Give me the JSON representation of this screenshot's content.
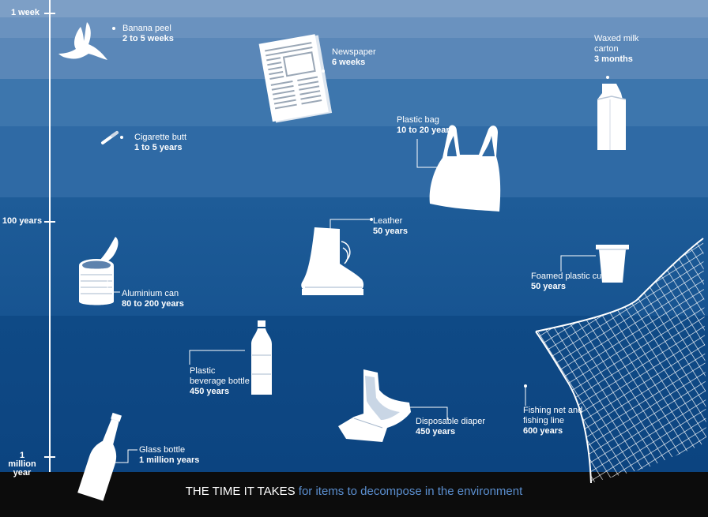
{
  "axis": {
    "ticks": [
      "1 week",
      "100 years",
      "1 million year"
    ]
  },
  "items": {
    "banana": {
      "name": "Banana peel",
      "time": "2 to 5 weeks",
      "icon": "banana-peel-icon"
    },
    "newspaper": {
      "name": "Newspaper",
      "time": "6 weeks",
      "icon": "newspaper-icon"
    },
    "milk": {
      "name": "Waxed milk carton",
      "time": "3 months",
      "icon": "milk-carton-icon"
    },
    "cigarette": {
      "name": "Cigarette butt",
      "time": "1 to 5 years",
      "icon": "cigarette-butt-icon"
    },
    "bag": {
      "name": "Plastic bag",
      "time": "10 to 20 years",
      "icon": "plastic-bag-icon"
    },
    "leather": {
      "name": "Leather",
      "time": "50 years",
      "icon": "leather-boot-icon"
    },
    "can": {
      "name": "Aluminium can",
      "time": "80 to 200 years",
      "icon": "aluminium-can-icon"
    },
    "cup": {
      "name": "Foamed plastic cup",
      "time": "50 years",
      "icon": "foam-cup-icon"
    },
    "bottle": {
      "name": "Plastic beverage bottle",
      "time": "450 years",
      "icon": "plastic-bottle-icon"
    },
    "diaper": {
      "name": "Disposable diaper",
      "time": "450 years",
      "icon": "diaper-icon"
    },
    "net": {
      "name": "Fishing net and fishing line",
      "time": "600 years",
      "icon": "fishing-net-icon"
    },
    "glass": {
      "name": "Glass bottle",
      "time": "1 million years",
      "icon": "glass-bottle-icon"
    }
  },
  "footer": {
    "title_emphasis": "THE TIME IT TAKES",
    "title_rest": "for items to decompose in the environment"
  },
  "colors": {
    "footer_accent": "#5b8fd0",
    "footer_bg": "#0c0c0c"
  }
}
